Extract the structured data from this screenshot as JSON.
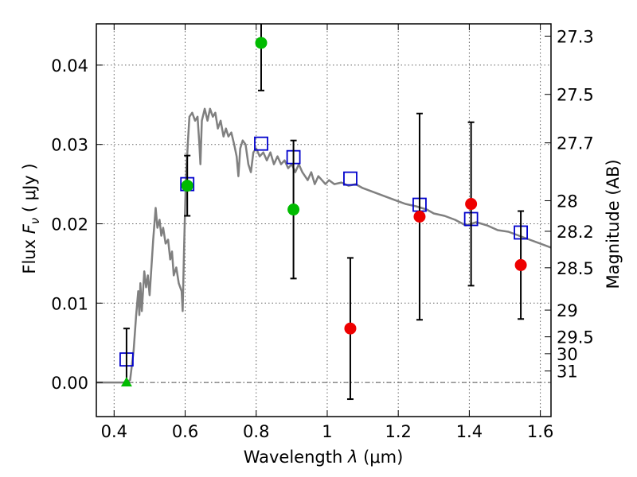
{
  "chart_data": {
    "type": "scatter",
    "xlabel": "Wavelength  λ (μm)",
    "ylabel": "Flux  F_ν  ( μJy )",
    "ylabel_parts": {
      "prefix": "Flux  ",
      "var": "F",
      "sub": "ν",
      "suffix": "  ( μJy )"
    },
    "xlabel_parts": {
      "prefix": "Wavelength  ",
      "var": "λ",
      "suffix": " (μm)"
    },
    "y2label": "Magnitude (AB)",
    "xlim": [
      0.35,
      1.63
    ],
    "ylim": [
      -0.0043,
      0.0452
    ],
    "grid": true,
    "x_ticks": [
      {
        "value": 0.4,
        "label": "0.4"
      },
      {
        "value": 0.6,
        "label": "0.6"
      },
      {
        "value": 0.8,
        "label": "0.8"
      },
      {
        "value": 1.0,
        "label": "1"
      },
      {
        "value": 1.2,
        "label": "1.2"
      },
      {
        "value": 1.4,
        "label": "1.4"
      },
      {
        "value": 1.6,
        "label": "1.6"
      }
    ],
    "y_ticks": [
      {
        "value": 0.0,
        "label": "0.00"
      },
      {
        "value": 0.01,
        "label": "0.01"
      },
      {
        "value": 0.02,
        "label": "0.02"
      },
      {
        "value": 0.03,
        "label": "0.03"
      },
      {
        "value": 0.04,
        "label": "0.04"
      }
    ],
    "y2_ticks": [
      {
        "value": 27.3,
        "label": "27.3"
      },
      {
        "value": 27.5,
        "label": "27.5"
      },
      {
        "value": 27.7,
        "label": "27.7"
      },
      {
        "value": 28,
        "label": "28"
      },
      {
        "value": 28.2,
        "label": "28.2"
      },
      {
        "value": 28.5,
        "label": "28.5"
      },
      {
        "value": 29,
        "label": "29"
      },
      {
        "value": 29.5,
        "label": "29.5"
      },
      {
        "value": 30,
        "label": "30"
      },
      {
        "value": 31,
        "label": "31"
      }
    ],
    "series": [
      {
        "kind": "model-spectrum",
        "color": "#808080",
        "points": [
          [
            0.35,
            0.0
          ],
          [
            0.43,
            0.0
          ],
          [
            0.445,
            0.0003
          ],
          [
            0.455,
            0.004
          ],
          [
            0.462,
            0.0085
          ],
          [
            0.468,
            0.0115
          ],
          [
            0.471,
            0.0085
          ],
          [
            0.474,
            0.0125
          ],
          [
            0.478,
            0.009
          ],
          [
            0.485,
            0.014
          ],
          [
            0.49,
            0.012
          ],
          [
            0.495,
            0.0135
          ],
          [
            0.5,
            0.011
          ],
          [
            0.51,
            0.018
          ],
          [
            0.517,
            0.022
          ],
          [
            0.522,
            0.0195
          ],
          [
            0.528,
            0.0205
          ],
          [
            0.533,
            0.0185
          ],
          [
            0.538,
            0.0195
          ],
          [
            0.545,
            0.0175
          ],
          [
            0.552,
            0.018
          ],
          [
            0.558,
            0.0155
          ],
          [
            0.563,
            0.0165
          ],
          [
            0.568,
            0.0135
          ],
          [
            0.575,
            0.0145
          ],
          [
            0.582,
            0.0125
          ],
          [
            0.59,
            0.0115
          ],
          [
            0.593,
            0.009
          ],
          [
            0.597,
            0.017
          ],
          [
            0.602,
            0.0255
          ],
          [
            0.608,
            0.0305
          ],
          [
            0.612,
            0.0335
          ],
          [
            0.62,
            0.034
          ],
          [
            0.628,
            0.033
          ],
          [
            0.635,
            0.0335
          ],
          [
            0.64,
            0.03
          ],
          [
            0.643,
            0.0275
          ],
          [
            0.647,
            0.033
          ],
          [
            0.655,
            0.0345
          ],
          [
            0.663,
            0.033
          ],
          [
            0.67,
            0.0345
          ],
          [
            0.678,
            0.0335
          ],
          [
            0.685,
            0.034
          ],
          [
            0.692,
            0.032
          ],
          [
            0.7,
            0.033
          ],
          [
            0.708,
            0.031
          ],
          [
            0.715,
            0.032
          ],
          [
            0.722,
            0.031
          ],
          [
            0.73,
            0.0315
          ],
          [
            0.738,
            0.03
          ],
          [
            0.745,
            0.0285
          ],
          [
            0.75,
            0.026
          ],
          [
            0.755,
            0.0295
          ],
          [
            0.762,
            0.0305
          ],
          [
            0.77,
            0.03
          ],
          [
            0.778,
            0.0275
          ],
          [
            0.785,
            0.0265
          ],
          [
            0.792,
            0.029
          ],
          [
            0.8,
            0.0295
          ],
          [
            0.81,
            0.0285
          ],
          [
            0.82,
            0.029
          ],
          [
            0.83,
            0.028
          ],
          [
            0.84,
            0.029
          ],
          [
            0.85,
            0.0275
          ],
          [
            0.86,
            0.0285
          ],
          [
            0.87,
            0.0275
          ],
          [
            0.88,
            0.028
          ],
          [
            0.89,
            0.027
          ],
          [
            0.9,
            0.0275
          ],
          [
            0.91,
            0.0265
          ],
          [
            0.92,
            0.0275
          ],
          [
            0.93,
            0.0265
          ],
          [
            0.945,
            0.0255
          ],
          [
            0.955,
            0.0265
          ],
          [
            0.965,
            0.025
          ],
          [
            0.975,
            0.026
          ],
          [
            0.985,
            0.0255
          ],
          [
            0.995,
            0.025
          ],
          [
            1.005,
            0.0255
          ],
          [
            1.02,
            0.025
          ],
          [
            1.04,
            0.0252
          ],
          [
            1.06,
            0.0248
          ],
          [
            1.08,
            0.025
          ],
          [
            1.1,
            0.0245
          ],
          [
            1.13,
            0.024
          ],
          [
            1.16,
            0.0235
          ],
          [
            1.19,
            0.023
          ],
          [
            1.22,
            0.0225
          ],
          [
            1.25,
            0.0222
          ],
          [
            1.28,
            0.0218
          ],
          [
            1.3,
            0.0213
          ],
          [
            1.33,
            0.021
          ],
          [
            1.36,
            0.0205
          ],
          [
            1.39,
            0.0198
          ],
          [
            1.42,
            0.0202
          ],
          [
            1.45,
            0.0198
          ],
          [
            1.48,
            0.0192
          ],
          [
            1.51,
            0.019
          ],
          [
            1.54,
            0.0185
          ],
          [
            1.57,
            0.018
          ],
          [
            1.6,
            0.0175
          ],
          [
            1.63,
            0.017
          ]
        ]
      },
      {
        "kind": "model-fluxes",
        "marker": "open-square",
        "color": "#0000cc",
        "points": [
          {
            "x": 0.435,
            "y": 0.0029
          },
          {
            "x": 0.606,
            "y": 0.025
          },
          {
            "x": 0.814,
            "y": 0.0301
          },
          {
            "x": 0.905,
            "y": 0.0284
          },
          {
            "x": 1.065,
            "y": 0.0257
          },
          {
            "x": 1.26,
            "y": 0.0224
          },
          {
            "x": 1.405,
            "y": 0.0206
          },
          {
            "x": 1.545,
            "y": 0.0189
          }
        ]
      },
      {
        "kind": "observed-detections",
        "marker": "filled-circle",
        "color": "#00bb00",
        "points": [
          {
            "x": 0.606,
            "y": 0.0248,
            "err": 0.0038
          },
          {
            "x": 0.814,
            "y": 0.0428,
            "err": 0.006
          },
          {
            "x": 0.905,
            "y": 0.0218,
            "err": 0.0087
          }
        ]
      },
      {
        "kind": "observed-upper-limit",
        "marker": "filled-triangle",
        "color": "#00bb00",
        "points": [
          {
            "x": 0.435,
            "y": 0.0,
            "err_up": 0.0068,
            "err_down": 0.0
          }
        ]
      },
      {
        "kind": "observed-low-significance",
        "marker": "filled-circle",
        "color": "#ee0000",
        "points": [
          {
            "x": 1.065,
            "y": 0.0068,
            "err": 0.0089
          },
          {
            "x": 1.26,
            "y": 0.0209,
            "err": 0.013
          },
          {
            "x": 1.405,
            "y": 0.0225,
            "err": 0.0103
          },
          {
            "x": 1.545,
            "y": 0.0148,
            "err": 0.0068
          }
        ]
      }
    ]
  }
}
